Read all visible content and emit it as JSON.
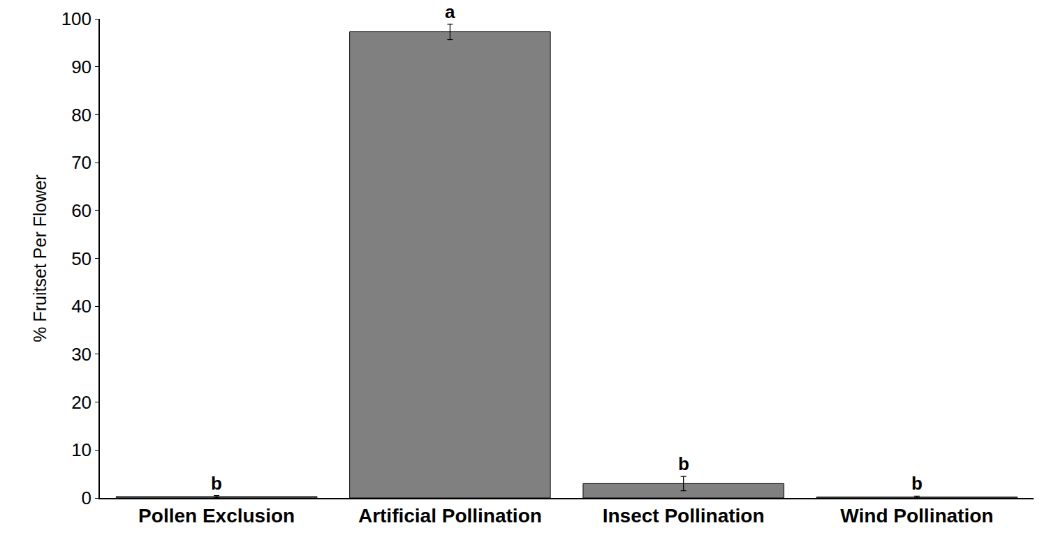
{
  "chart_data": {
    "type": "bar",
    "y_label": "% Fruitset Per Flower",
    "categories": [
      "Pollen Exclusion",
      "Artificial Pollination",
      "Insect Pollination",
      "Wind Pollination"
    ],
    "values": [
      0.3,
      97.3,
      3.0,
      0.2
    ],
    "errors": [
      0.2,
      1.6,
      1.5,
      0.2
    ],
    "annotations": [
      "b",
      "a",
      "b",
      "b"
    ],
    "color": "#808080",
    "ylim": [
      0,
      100
    ],
    "yticks": [
      0,
      10,
      20,
      30,
      40,
      50,
      60,
      70,
      80,
      90,
      100
    ],
    "grid": false
  }
}
